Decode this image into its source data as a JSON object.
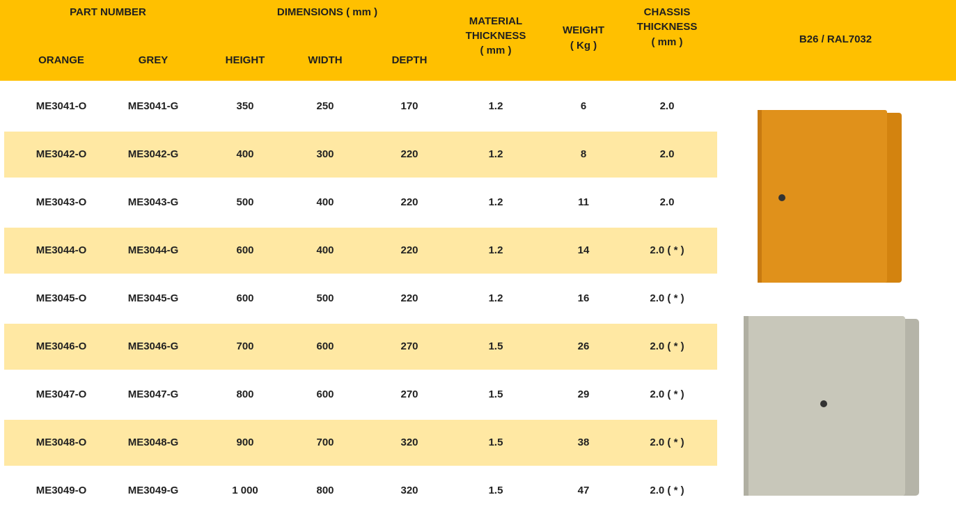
{
  "header": {
    "groups": [
      "PART NUMBER",
      "DIMENSIONS ( mm )"
    ],
    "columns": [
      [
        "ORANGE"
      ],
      [
        "GREY"
      ],
      [
        "HEIGHT"
      ],
      [
        "WIDTH"
      ],
      [
        "DEPTH"
      ],
      [
        "MATERIAL",
        "THICKNESS",
        "( mm )"
      ],
      [
        "WEIGHT",
        "( Kg )"
      ],
      [
        "CHASSIS",
        "THICKNESS",
        "( mm )"
      ],
      [
        "B26 / RAL7032"
      ]
    ]
  },
  "table": {
    "rows": [
      [
        "ME3041-O",
        "ME3041-G",
        "350",
        "250",
        "170",
        "1.2",
        "6",
        "2.0"
      ],
      [
        "ME3042-O",
        "ME3042-G",
        "400",
        "300",
        "220",
        "1.2",
        "8",
        "2.0"
      ],
      [
        "ME3043-O",
        "ME3043-G",
        "500",
        "400",
        "220",
        "1.2",
        "11",
        "2.0"
      ],
      [
        "ME3044-O",
        "ME3044-G",
        "600",
        "400",
        "220",
        "1.2",
        "14",
        "2.0  ( * )"
      ],
      [
        "ME3045-O",
        "ME3045-G",
        "600",
        "500",
        "220",
        "1.2",
        "16",
        "2.0  ( * )"
      ],
      [
        "ME3046-O",
        "ME3046-G",
        "700",
        "600",
        "270",
        "1.5",
        "26",
        "2.0  ( * )"
      ],
      [
        "ME3047-O",
        "ME3047-G",
        "800",
        "600",
        "270",
        "1.5",
        "29",
        "2.0  ( * )"
      ],
      [
        "ME3048-O",
        "ME3048-G",
        "900",
        "700",
        "320",
        "1.5",
        "38",
        "2.0  ( * )"
      ],
      [
        "ME3049-O",
        "ME3049-G",
        "1 000",
        "800",
        "320",
        "1.5",
        "47",
        "2.0  ( * )"
      ]
    ]
  }
}
